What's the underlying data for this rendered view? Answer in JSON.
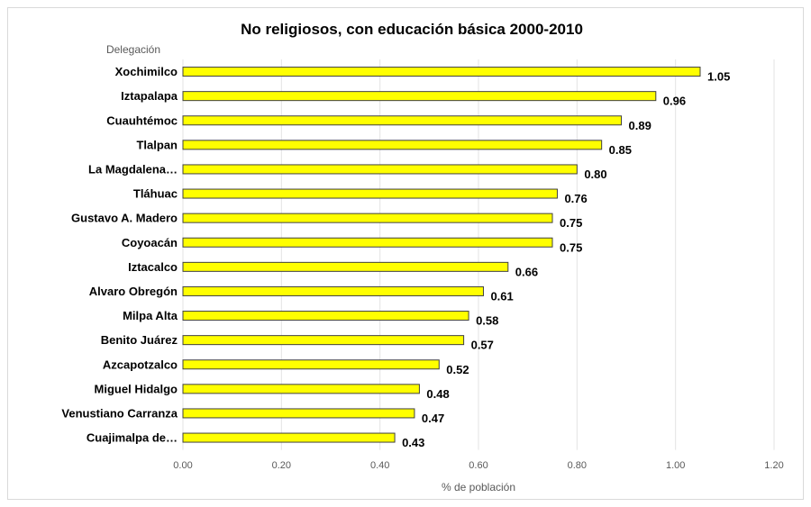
{
  "chart_data": {
    "type": "bar",
    "orientation": "horizontal",
    "title": "No religiosos, con educación básica 2000-2010",
    "ylabel": "Delegación",
    "xlabel": "% de población",
    "categories": [
      "Xochimilco",
      "Iztapalapa",
      "Cuauhtémoc",
      "Tlalpan",
      "La Magdalena…",
      "Tláhuac",
      "Gustavo A. Madero",
      "Coyoacán",
      "Iztacalco",
      "Alvaro Obregón",
      "Milpa Alta",
      "Benito Juárez",
      "Azcapotzalco",
      "Miguel Hidalgo",
      "Venustiano Carranza",
      "Cuajimalpa de…"
    ],
    "values": [
      1.05,
      0.96,
      0.89,
      0.85,
      0.8,
      0.76,
      0.75,
      0.75,
      0.66,
      0.61,
      0.58,
      0.57,
      0.52,
      0.48,
      0.47,
      0.43
    ],
    "value_labels": [
      "1.05",
      "0.96",
      "0.89",
      "0.85",
      "0.80",
      "0.76",
      "0.75",
      "0.75",
      "0.66",
      "0.61",
      "0.58",
      "0.57",
      "0.52",
      "0.48",
      "0.47",
      "0.43"
    ],
    "xlim": [
      0,
      1.2
    ],
    "xticks": [
      0,
      0.2,
      0.4,
      0.6,
      0.8,
      1.0,
      1.2
    ],
    "xtick_labels": [
      "0.00",
      "0.20",
      "0.40",
      "0.60",
      "0.80",
      "1.00",
      "1.20"
    ],
    "grid": "vertical",
    "bar_color": "#ffff00",
    "bar_edge_color": "#404040"
  }
}
